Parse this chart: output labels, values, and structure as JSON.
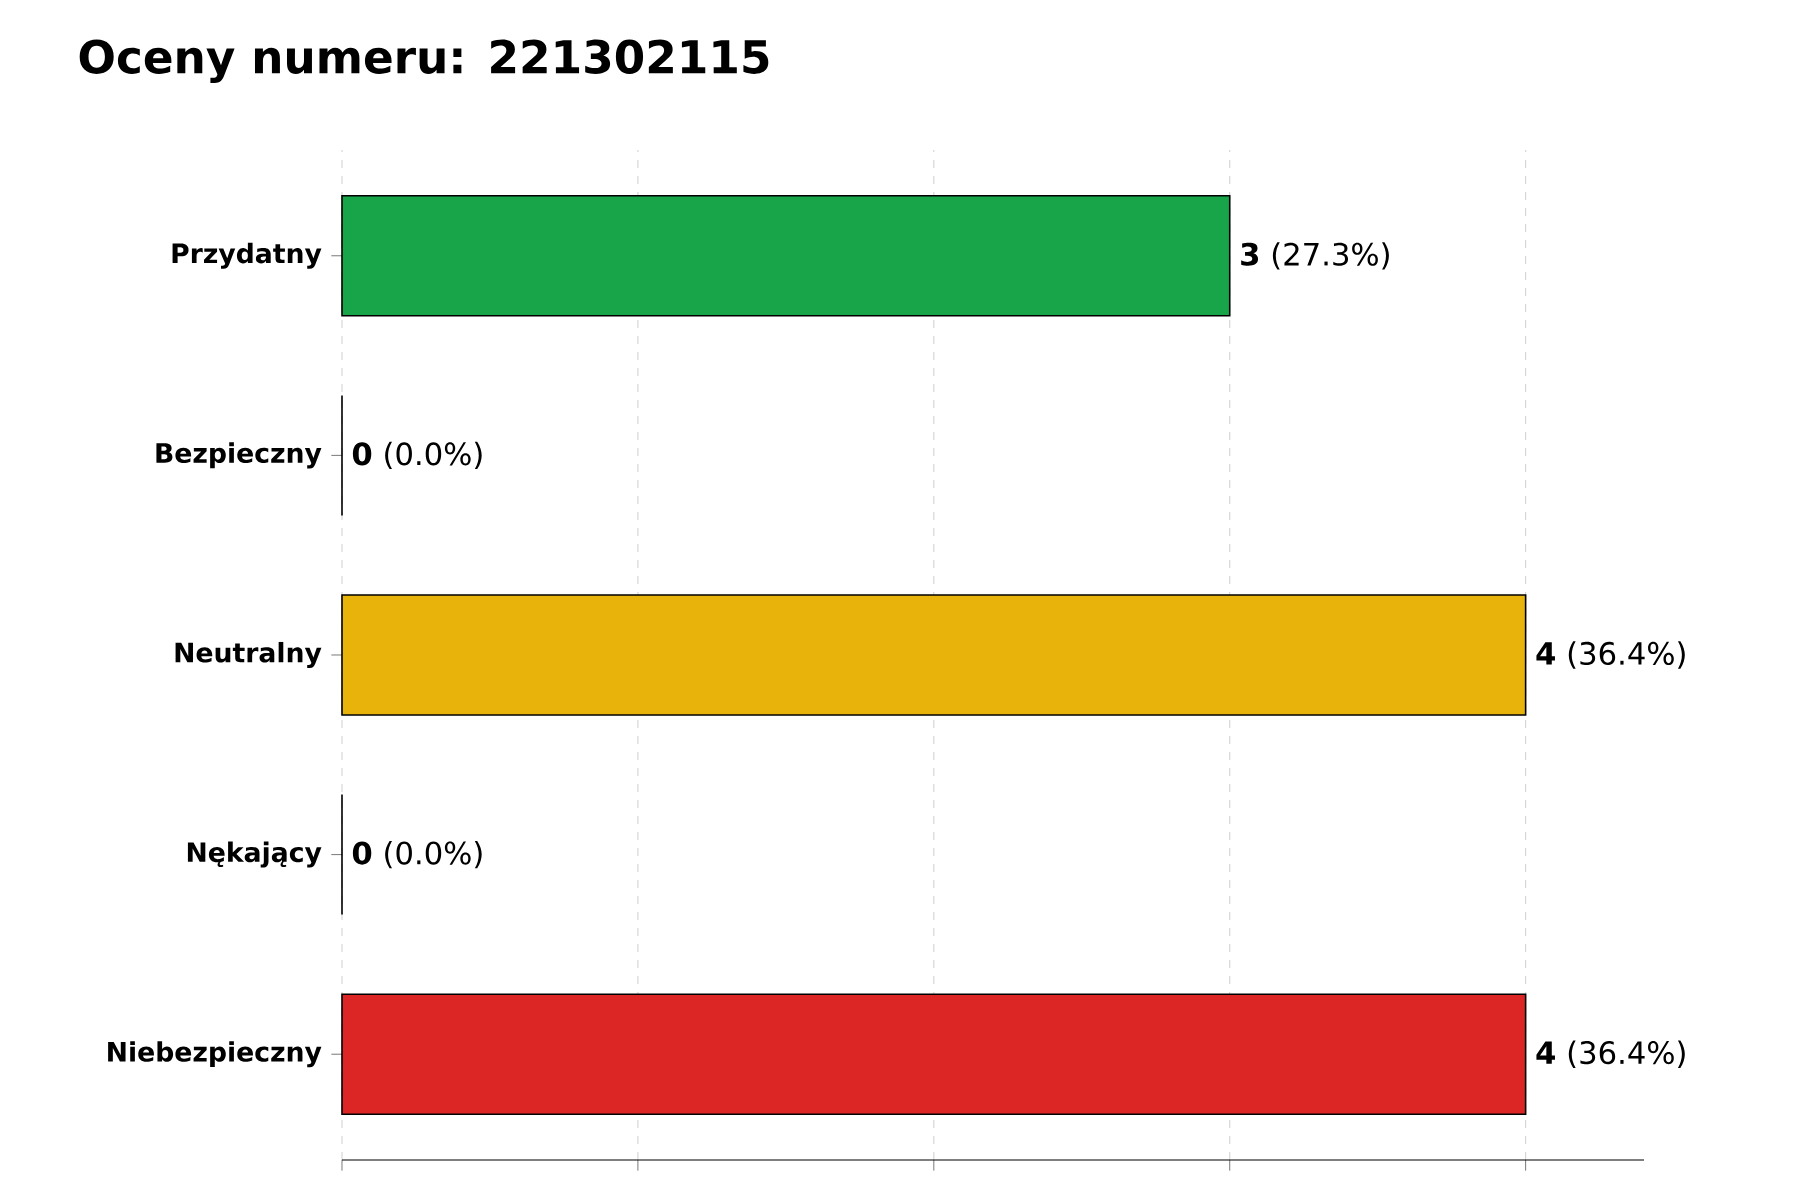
{
  "chart_data": {
    "type": "bar",
    "orientation": "horizontal",
    "title": "Oceny numeru: 221302115",
    "categories": [
      "Przydatny",
      "Bezpieczny",
      "Neutralny",
      "Nękający",
      "Niebezpieczny"
    ],
    "values": [
      3,
      0,
      4,
      0,
      4
    ],
    "colors": [
      "#18a54a",
      "#3b82f6",
      "#e8b40b",
      "#f97316",
      "#dc2626"
    ],
    "value_labels": [
      "**3** (27.3%)",
      "**0** (0.0%)",
      "**4** (36.4%)",
      "**0** (0.0%)",
      "**4** (36.4%)"
    ],
    "xlim": [
      0,
      4.4
    ],
    "xticks": [
      {
        "value": 0,
        "label": null
      },
      {
        "value": 1,
        "label": null
      },
      {
        "value": 2,
        "label": null
      },
      {
        "value": 3,
        "label": null
      },
      {
        "value": 4,
        "label": null
      }
    ],
    "grid": "x",
    "tick_labels": "y"
  }
}
